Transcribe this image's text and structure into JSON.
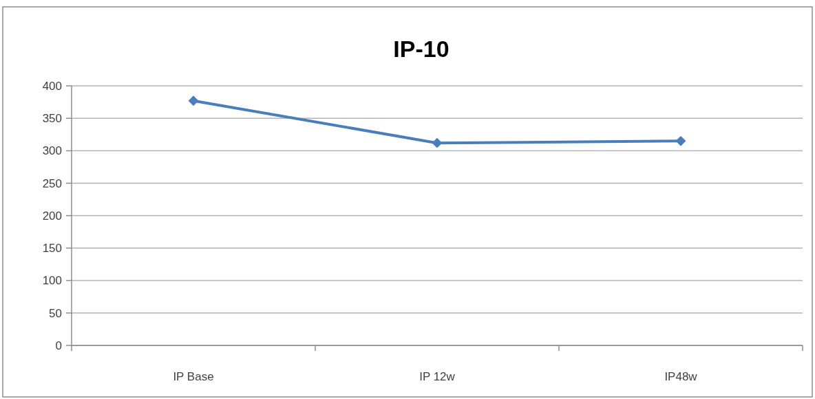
{
  "chart_data": {
    "type": "line",
    "title": "IP-10",
    "categories": [
      "IP Base",
      "IP 12w",
      "IP48w"
    ],
    "series": [
      {
        "color": "#4a7ebb",
        "values": [
          377,
          312,
          315
        ]
      }
    ],
    "ylim": [
      0,
      400
    ],
    "yticks": [
      0,
      50,
      100,
      150,
      200,
      250,
      300,
      350,
      400
    ],
    "grid": "y",
    "marker": "diamond",
    "line_style": "solid"
  }
}
